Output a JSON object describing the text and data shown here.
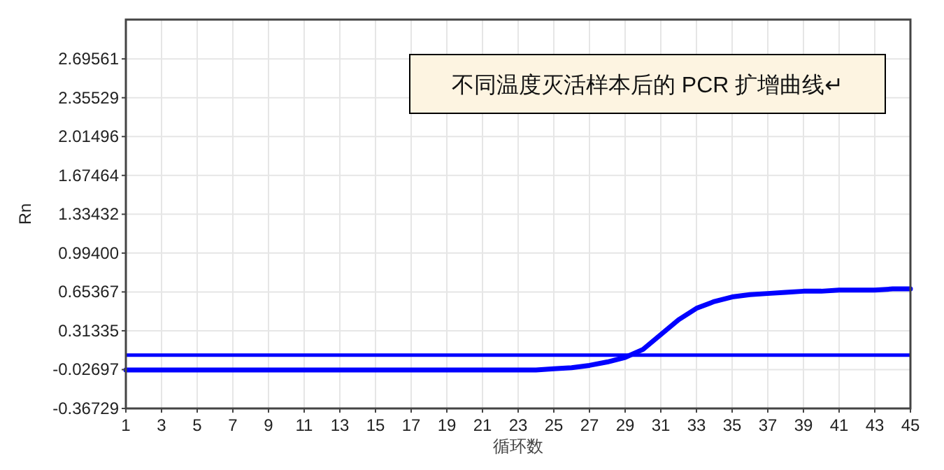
{
  "chart_data": {
    "type": "line",
    "title": "不同温度灭活样本后的 PCR 扩增曲线↵",
    "xlabel": "循环数",
    "ylabel": "Rn",
    "x": [
      1,
      2,
      3,
      4,
      5,
      6,
      7,
      8,
      9,
      10,
      11,
      12,
      13,
      14,
      15,
      16,
      17,
      18,
      19,
      20,
      21,
      22,
      23,
      24,
      25,
      26,
      27,
      28,
      29,
      30,
      31,
      32,
      33,
      34,
      35,
      36,
      37,
      38,
      39,
      40,
      41,
      42,
      43,
      44,
      45
    ],
    "series": [
      {
        "color": "#0000ff",
        "values": [
          -0.03,
          -0.03,
          -0.03,
          -0.03,
          -0.03,
          -0.03,
          -0.03,
          -0.03,
          -0.03,
          -0.03,
          -0.03,
          -0.03,
          -0.03,
          -0.03,
          -0.03,
          -0.03,
          -0.03,
          -0.03,
          -0.03,
          -0.03,
          -0.03,
          -0.03,
          -0.03,
          -0.03,
          -0.02,
          -0.01,
          0.01,
          0.04,
          0.08,
          0.15,
          0.28,
          0.41,
          0.51,
          0.57,
          0.61,
          0.63,
          0.64,
          0.65,
          0.66,
          0.66,
          0.67,
          0.67,
          0.67,
          0.68,
          0.68
        ]
      }
    ],
    "ref_lines": [
      {
        "axis": "y",
        "value": 0.1,
        "color": "#0000ff"
      }
    ],
    "xlim": [
      1,
      45
    ],
    "xticks": [
      1,
      3,
      5,
      7,
      9,
      11,
      13,
      15,
      17,
      19,
      21,
      23,
      25,
      27,
      29,
      31,
      33,
      35,
      37,
      39,
      41,
      43,
      45
    ],
    "ylim": [
      -0.36729,
      3.04
    ],
    "yticks": [
      -0.36729,
      -0.02697,
      0.31335,
      0.65367,
      {
        "value": 0.994,
        "label": "0.99400"
      },
      1.33432,
      1.67464,
      2.01496,
      2.35529,
      2.69561
    ],
    "grid": true,
    "marker": "none",
    "line_style": "solid"
  }
}
